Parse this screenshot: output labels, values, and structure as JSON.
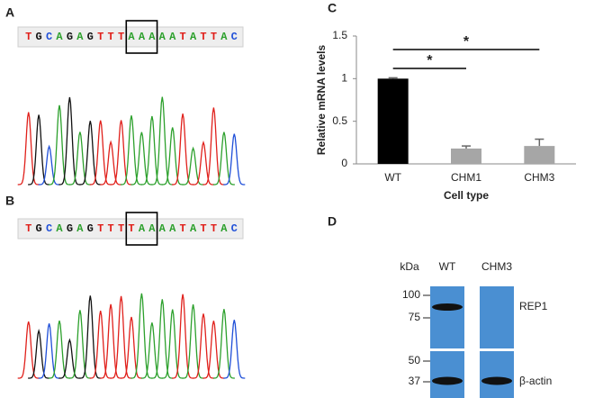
{
  "panel_labels": [
    "A",
    "B",
    "C",
    "D"
  ],
  "sequences": [
    {
      "left": [
        "T",
        "G",
        "C",
        "A",
        "G",
        "A",
        "G",
        "T",
        "T",
        "T"
      ],
      "boxed": [
        "A",
        "A",
        "A"
      ],
      "right": [
        "A",
        "A",
        "T",
        "A",
        "T",
        "T",
        "A",
        "C"
      ]
    },
    {
      "left": [
        "T",
        "G",
        "C",
        "A",
        "G",
        "A",
        "G",
        "T",
        "T",
        "T"
      ],
      "boxed": [
        "T",
        "A",
        "A"
      ],
      "right": [
        "A",
        "A",
        "T",
        "A",
        "T",
        "T",
        "A",
        "C"
      ]
    }
  ],
  "chart_data": {
    "type": "bar",
    "ylabel": "Relative mRNA levels",
    "xlabel": "Cell type",
    "categories": [
      "WT",
      "CHM1",
      "CHM3"
    ],
    "values": [
      1.0,
      0.18,
      0.21
    ],
    "errors": [
      0.01,
      0.03,
      0.08
    ],
    "colors": [
      "#000000",
      "#a6a6a6",
      "#a6a6a6"
    ],
    "ylim": [
      0,
      1.5
    ],
    "yticks": [
      0,
      0.5,
      1,
      1.5
    ],
    "significance": [
      {
        "between": [
          "WT",
          "CHM1"
        ],
        "label": "*"
      },
      {
        "between": [
          "WT",
          "CHM3"
        ],
        "label": "*"
      }
    ]
  },
  "blot": {
    "unit": "kDa",
    "lanes": [
      "WT",
      "CHM3"
    ],
    "markers": [
      100,
      75,
      50,
      37
    ],
    "proteins": [
      "REP1",
      "β-actin"
    ]
  }
}
